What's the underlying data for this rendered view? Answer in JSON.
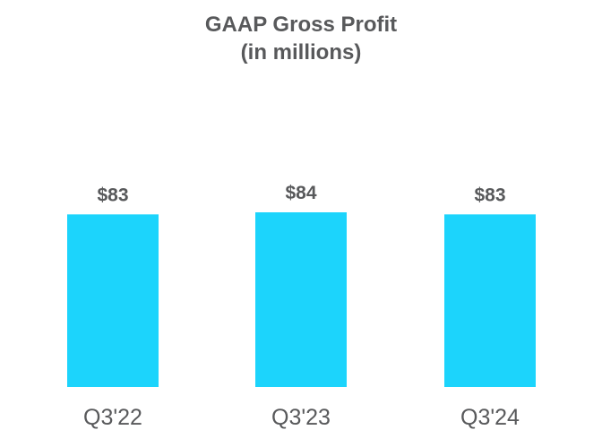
{
  "chart_data": {
    "type": "bar",
    "title": "GAAP Gross Profit",
    "subtitle": "(in millions)",
    "categories": [
      "Q3'22",
      "Q3'23",
      "Q3'24"
    ],
    "values": [
      83,
      84,
      83
    ],
    "data_labels": [
      "$83",
      "$84",
      "$83"
    ],
    "ylim": [
      0,
      84
    ],
    "grid": false,
    "bar_color": "#1cd4fc",
    "text_color": "#58595b"
  }
}
